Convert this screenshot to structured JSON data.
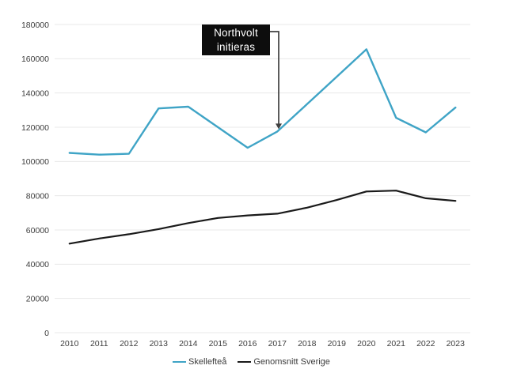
{
  "chart_data": {
    "type": "line",
    "title": "",
    "categories": [
      "2010",
      "2011",
      "2012",
      "2013",
      "2014",
      "2015",
      "2016",
      "2017",
      "2018",
      "2019",
      "2020",
      "2021",
      "2022",
      "2023"
    ],
    "series": [
      {
        "name": "Skellefteå",
        "color": "#3fa4c6",
        "values": [
          105000,
          104000,
          104500,
          131000,
          132000,
          120000,
          108000,
          117500,
          133500,
          149500,
          165500,
          125500,
          117000,
          131500
        ]
      },
      {
        "name": "Genomsnitt Sverige",
        "color": "#1a1a1a",
        "values": [
          52000,
          55000,
          57500,
          60500,
          64000,
          67000,
          68500,
          69500,
          73000,
          77500,
          82500,
          83000,
          78500,
          77000
        ]
      }
    ],
    "ylim": [
      0,
      180000
    ],
    "yticks": [
      0,
      20000,
      40000,
      60000,
      80000,
      100000,
      120000,
      140000,
      160000,
      180000
    ],
    "grid": "horizontal",
    "legend_position": "bottom",
    "annotation": {
      "lines": [
        "Northvolt",
        "initieras"
      ],
      "target_year": "2017",
      "bg_color": "#0d0d0d",
      "text_color": "#ffffff"
    }
  },
  "colors": {
    "background": "#ffffff",
    "gridline": "#e8e8e8",
    "axis_text": "#3c3c3c",
    "arrow": "#404040"
  }
}
